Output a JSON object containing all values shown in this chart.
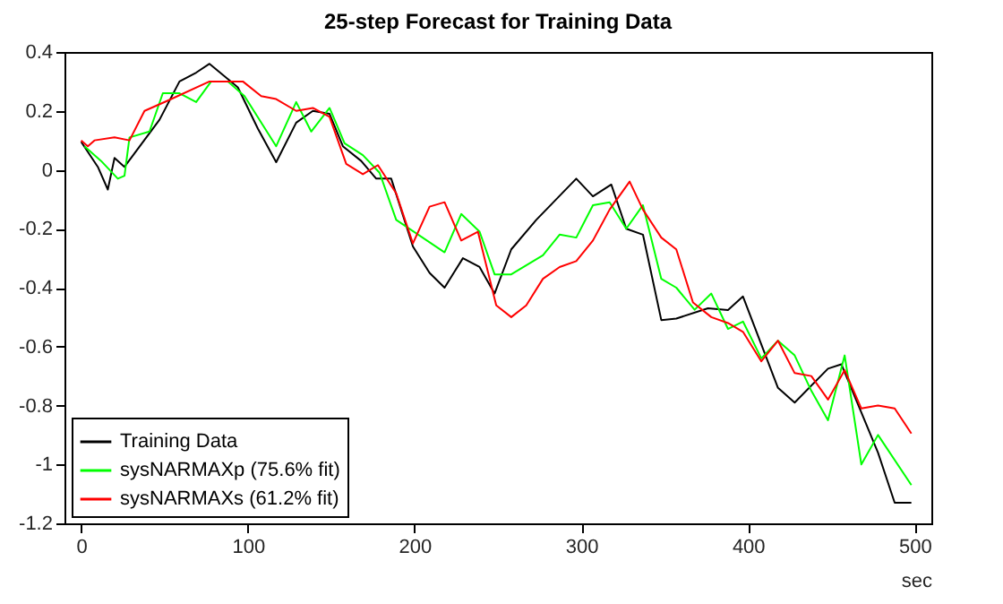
{
  "chart_data": {
    "type": "line",
    "title": "25-step Forecast for Training Data",
    "xlabel": "sec",
    "xlim": [
      -10,
      510
    ],
    "ylim": [
      -1.2,
      0.4
    ],
    "xticks": [
      0,
      100,
      200,
      300,
      400,
      500
    ],
    "yticks": [
      -1.2,
      -1,
      -0.8,
      -0.6,
      -0.4,
      -0.2,
      0,
      0.2,
      0.4
    ],
    "grid": false,
    "legend": "bottom left",
    "marker": "none",
    "line_style": "solid",
    "series": [
      {
        "name": "Training Data",
        "color": "#000000",
        "x": [
          0,
          10,
          16,
          20,
          26,
          47,
          59,
          69,
          77,
          94,
          106,
          117,
          129,
          139,
          149,
          157,
          168,
          177,
          186,
          199,
          209,
          218,
          229,
          239,
          248,
          258,
          273,
          297,
          307,
          318,
          327,
          337,
          348,
          357,
          376,
          388,
          397,
          418,
          428,
          448,
          456,
          478,
          488,
          498
        ],
        "values": [
          0.095,
          0.01,
          -0.067,
          0.04,
          0.01,
          0.17,
          0.3,
          0.33,
          0.36,
          0.28,
          0.14,
          0.026,
          0.16,
          0.2,
          0.19,
          0.08,
          0.03,
          -0.03,
          -0.03,
          -0.26,
          -0.35,
          -0.4,
          -0.3,
          -0.33,
          -0.42,
          -0.27,
          -0.17,
          -0.03,
          -0.09,
          -0.05,
          -0.2,
          -0.22,
          -0.51,
          -0.505,
          -0.47,
          -0.476,
          -0.43,
          -0.74,
          -0.79,
          -0.675,
          -0.66,
          -0.96,
          -1.13,
          -1.13
        ]
      },
      {
        "name": "sysNARMAXp (75.6% fit)",
        "color": "#00ff00",
        "x": [
          2,
          12,
          22,
          26,
          29,
          41,
          49,
          59,
          69,
          78,
          88,
          98,
          117,
          129,
          138,
          149,
          158,
          169,
          179,
          189,
          218,
          228,
          239,
          248,
          258,
          277,
          287,
          297,
          307,
          317,
          327,
          337,
          348,
          357,
          368,
          378,
          388,
          397,
          408,
          418,
          428,
          438,
          448,
          458,
          468,
          478,
          498
        ],
        "values": [
          0.08,
          0.03,
          -0.03,
          -0.02,
          0.11,
          0.13,
          0.26,
          0.26,
          0.23,
          0.3,
          0.3,
          0.25,
          0.08,
          0.23,
          0.13,
          0.21,
          0.09,
          0.05,
          -0.01,
          -0.17,
          -0.28,
          -0.15,
          -0.21,
          -0.355,
          -0.355,
          -0.29,
          -0.22,
          -0.23,
          -0.12,
          -0.11,
          -0.2,
          -0.12,
          -0.37,
          -0.4,
          -0.475,
          -0.42,
          -0.54,
          -0.515,
          -0.64,
          -0.58,
          -0.63,
          -0.75,
          -0.85,
          -0.63,
          -1.0,
          -0.9,
          -1.07
        ]
      },
      {
        "name": "sysNARMAXs (61.2% fit)",
        "color": "#ff0000",
        "x": [
          0,
          4,
          8,
          20,
          29,
          38,
          52,
          77,
          97,
          108,
          117,
          129,
          139,
          149,
          159,
          169,
          178,
          189,
          199,
          209,
          218,
          228,
          238,
          249,
          258,
          267,
          277,
          287,
          297,
          307,
          317,
          329,
          337,
          348,
          357,
          367,
          378,
          388,
          397,
          408,
          418,
          428,
          438,
          448,
          458,
          468,
          478,
          488,
          498
        ],
        "values": [
          0.1,
          0.08,
          0.1,
          0.11,
          0.1,
          0.2,
          0.235,
          0.3,
          0.3,
          0.25,
          0.24,
          0.2,
          0.21,
          0.18,
          0.02,
          -0.015,
          0.016,
          -0.08,
          -0.25,
          -0.125,
          -0.11,
          -0.24,
          -0.21,
          -0.46,
          -0.5,
          -0.46,
          -0.37,
          -0.33,
          -0.31,
          -0.24,
          -0.135,
          -0.04,
          -0.135,
          -0.23,
          -0.27,
          -0.45,
          -0.5,
          -0.52,
          -0.55,
          -0.65,
          -0.58,
          -0.69,
          -0.7,
          -0.78,
          -0.68,
          -0.81,
          -0.8,
          -0.81,
          -0.895
        ]
      }
    ]
  }
}
